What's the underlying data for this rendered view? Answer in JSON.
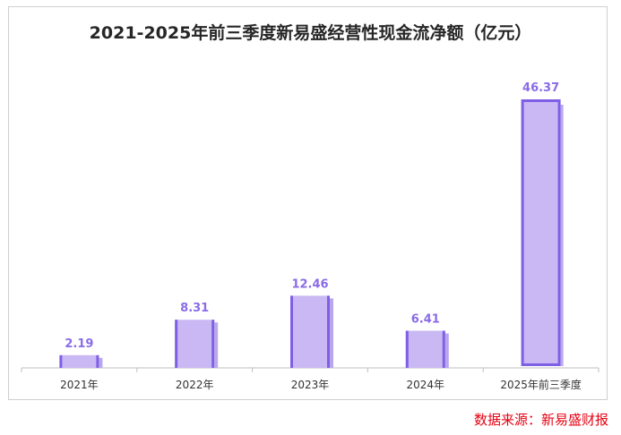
{
  "chart_data": {
    "type": "bar",
    "title": "2021-2025年前三季度新易盛经营性现金流净额（亿元）",
    "categories": [
      "2021年",
      "2022年",
      "2023年",
      "2024年",
      "2025年前三季度"
    ],
    "values": [
      2.19,
      8.31,
      12.46,
      6.41,
      46.37
    ],
    "value_labels": [
      "2.19",
      "8.31",
      "12.46",
      "6.41",
      "46.37"
    ],
    "ylim": [
      0,
      46.37
    ],
    "grid": false,
    "legend": "none"
  },
  "source_text": "数据来源：新易盛财报",
  "colors": {
    "bar_fill": "#c9b8f3",
    "bar_edge": "#7e5fe6",
    "label": "#8a6be8",
    "source": "#e60012"
  }
}
